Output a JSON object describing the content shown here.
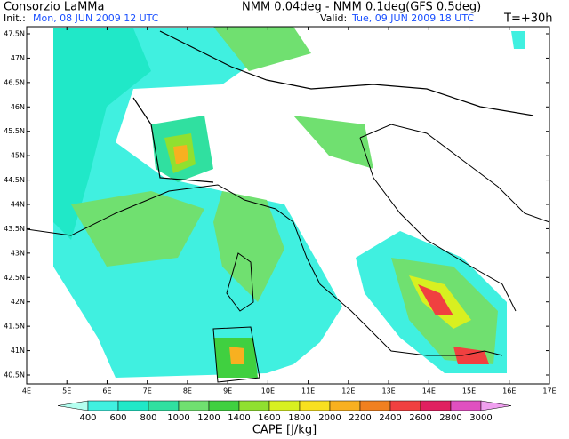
{
  "header": {
    "source": "Consorzio LaMMa",
    "model": "NMM 0.04deg - NMM 0.1deg(GFS 0.5deg)",
    "init_label": "Init.:",
    "init_value": "Mon, 08 JUN 2009   12 UTC",
    "valid_label": "Valid:",
    "valid_value": "Tue, 09 JUN 2009   18 UTC",
    "lead": "T=+30h"
  },
  "map": {
    "lat_labels": [
      "47.5N",
      "47N",
      "46.5N",
      "46N",
      "45.5N",
      "45N",
      "44.5N",
      "44N",
      "43.5N",
      "43N",
      "42.5N",
      "42N",
      "41.5N",
      "41N",
      "40.5N"
    ],
    "lon_labels": [
      "4E",
      "5E",
      "6E",
      "7E",
      "8E",
      "9E",
      "10E",
      "11E",
      "12E",
      "13E",
      "14E",
      "15E",
      "16E",
      "17E"
    ]
  },
  "colorbar": {
    "title": "CAPE [J/kg]",
    "labels": [
      "400",
      "600",
      "800",
      "1000",
      "1200",
      "1400",
      "1600",
      "1800",
      "2000",
      "2200",
      "2400",
      "2600",
      "2800",
      "3000"
    ],
    "colors": [
      "#b4fff0",
      "#40f0e0",
      "#20e8c8",
      "#30e0a0",
      "#70e070",
      "#40d040",
      "#90e030",
      "#d8f020",
      "#f8e020",
      "#f8b020",
      "#f08020",
      "#f04040",
      "#e02060",
      "#e050c0",
      "#f0a0f0"
    ]
  }
}
